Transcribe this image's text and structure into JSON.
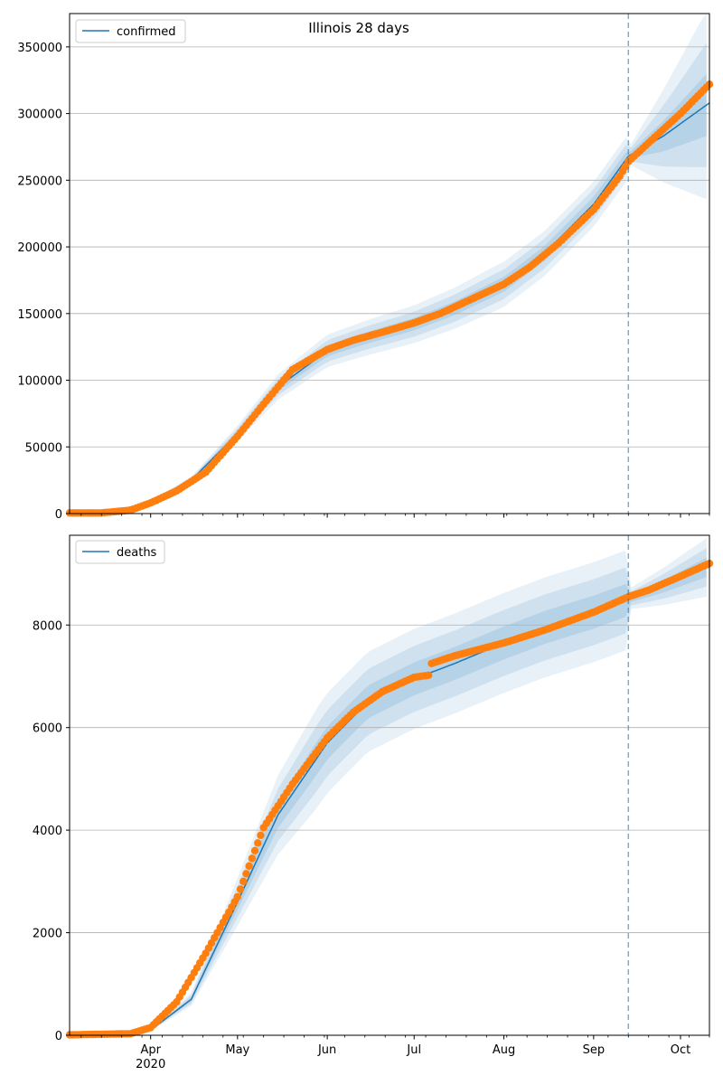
{
  "chart_data": [
    {
      "type": "line",
      "title": "Illinois 28 days",
      "legend": [
        "confirmed"
      ],
      "legend_placement": "upper-left",
      "ylim": [
        0,
        375000
      ],
      "yticks": [
        0,
        50000,
        100000,
        150000,
        200000,
        250000,
        300000,
        350000
      ],
      "ytick_labels": [
        "0",
        "50000",
        "100000",
        "150000",
        "200000",
        "250000",
        "300000",
        "350000"
      ],
      "grid": "horizontal",
      "forecast_start": "2020-09-13",
      "model_line": {
        "x": [
          "2020-03-01",
          "2020-03-20",
          "2020-04-01",
          "2020-04-15",
          "2020-05-01",
          "2020-05-15",
          "2020-06-01",
          "2020-06-15",
          "2020-07-01",
          "2020-07-15",
          "2020-08-01",
          "2020-08-15",
          "2020-09-01",
          "2020-09-13",
          "2020-09-25",
          "2020-10-11"
        ],
        "y": [
          500,
          2000,
          9000,
          25000,
          60000,
          95000,
          122000,
          132000,
          142000,
          154000,
          172000,
          195000,
          232000,
          268000,
          283000,
          308000
        ]
      },
      "observed": {
        "x": [
          "2020-03-01",
          "2020-03-15",
          "2020-03-25",
          "2020-04-01",
          "2020-04-10",
          "2020-04-20",
          "2020-05-01",
          "2020-05-10",
          "2020-05-20",
          "2020-06-01",
          "2020-06-10",
          "2020-06-20",
          "2020-07-01",
          "2020-07-10",
          "2020-07-20",
          "2020-08-01",
          "2020-08-10",
          "2020-08-20",
          "2020-09-01",
          "2020-09-10",
          "2020-09-13",
          "2020-09-20",
          "2020-10-01",
          "2020-10-11"
        ],
        "y": [
          500,
          500,
          2500,
          8000,
          17000,
          31000,
          58000,
          82000,
          108000,
          123000,
          130000,
          136000,
          143000,
          150000,
          160000,
          172000,
          185000,
          203000,
          228000,
          253000,
          264000,
          278000,
          300000,
          322000
        ]
      }
    },
    {
      "type": "line",
      "title": "",
      "legend": [
        "deaths"
      ],
      "legend_placement": "upper-left",
      "ylim": [
        0,
        9750
      ],
      "yticks": [
        0,
        2000,
        4000,
        6000,
        8000
      ],
      "ytick_labels": [
        "0",
        "2000",
        "4000",
        "6000",
        "8000"
      ],
      "xtick_labels": [
        "Apr\n2020",
        "May",
        "Jun",
        "Jul",
        "Aug",
        "Sep",
        "Oct"
      ],
      "xticks": [
        "2020-04-01",
        "2020-05-01",
        "2020-06-01",
        "2020-07-01",
        "2020-08-01",
        "2020-09-01",
        "2020-10-01"
      ],
      "grid": "horizontal",
      "forecast_start": "2020-09-13",
      "model_line": {
        "x": [
          "2020-03-01",
          "2020-03-20",
          "2020-04-01",
          "2020-04-15",
          "2020-05-01",
          "2020-05-15",
          "2020-06-01",
          "2020-06-15",
          "2020-07-01",
          "2020-07-15",
          "2020-08-01",
          "2020-08-15",
          "2020-09-01",
          "2020-09-13",
          "2020-09-25",
          "2020-10-11"
        ],
        "y": [
          5,
          10,
          100,
          700,
          2600,
          4300,
          5700,
          6500,
          6950,
          7250,
          7650,
          7950,
          8250,
          8500,
          8750,
          9150
        ]
      },
      "observed": {
        "x": [
          "2020-03-01",
          "2020-03-25",
          "2020-04-01",
          "2020-04-10",
          "2020-04-20",
          "2020-05-01",
          "2020-05-10",
          "2020-05-20",
          "2020-06-01",
          "2020-06-10",
          "2020-06-20",
          "2020-07-01",
          "2020-07-06",
          "2020-07-07",
          "2020-07-15",
          "2020-08-01",
          "2020-08-15",
          "2020-09-01",
          "2020-09-13",
          "2020-09-20",
          "2020-10-01",
          "2020-10-11"
        ],
        "y": [
          5,
          30,
          150,
          650,
          1600,
          2700,
          4050,
          4900,
          5800,
          6300,
          6700,
          6980,
          7020,
          7250,
          7400,
          7650,
          7900,
          8250,
          8550,
          8680,
          8950,
          9200
        ]
      }
    }
  ]
}
